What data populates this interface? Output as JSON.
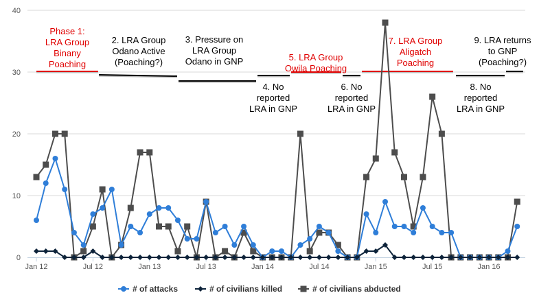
{
  "chart_data": {
    "type": "line",
    "title": "",
    "xlabel": "",
    "ylabel": "",
    "ylim": [
      0,
      40
    ],
    "yticks": [
      "0",
      "10",
      "20",
      "30",
      "40"
    ],
    "xticks": [
      "Jan 12",
      "Jul 12",
      "Jan 13",
      "Jul 13",
      "Jan 14",
      "Jul 14",
      "Jan 15",
      "Jul 15",
      "Jan 16"
    ],
    "x": [
      "2012-01",
      "2012-02",
      "2012-03",
      "2012-04",
      "2012-05",
      "2012-06",
      "2012-07",
      "2012-08",
      "2012-09",
      "2012-10",
      "2012-11",
      "2012-12",
      "2013-01",
      "2013-02",
      "2013-03",
      "2013-04",
      "2013-05",
      "2013-06",
      "2013-07",
      "2013-08",
      "2013-09",
      "2013-10",
      "2013-11",
      "2013-12",
      "2014-01",
      "2014-02",
      "2014-03",
      "2014-04",
      "2014-05",
      "2014-06",
      "2014-07",
      "2014-08",
      "2014-09",
      "2014-10",
      "2014-11",
      "2014-12",
      "2015-01",
      "2015-02",
      "2015-03",
      "2015-04",
      "2015-05",
      "2015-06",
      "2015-07",
      "2015-08",
      "2015-09",
      "2015-10",
      "2015-11",
      "2015-12",
      "2016-01",
      "2016-02",
      "2016-03",
      "2016-04"
    ],
    "grid": true,
    "legend": "bottom",
    "series": [
      {
        "name": "# of attacks",
        "color": "#2f7ed8",
        "marker": "circle",
        "values": [
          6,
          12,
          16,
          11,
          4,
          2,
          7,
          8,
          11,
          2,
          5,
          4,
          7,
          8,
          8,
          6,
          3,
          3,
          9,
          4,
          5,
          2,
          5,
          2,
          0,
          1,
          1,
          0,
          2,
          3,
          5,
          4,
          1,
          0,
          0,
          7,
          4,
          9,
          5,
          5,
          4,
          8,
          5,
          4,
          4,
          0,
          0,
          0,
          0,
          0,
          1,
          5
        ]
      },
      {
        "name": "# of civilians killed",
        "color": "#0d233a",
        "marker": "diamond",
        "values": [
          1,
          1,
          1,
          0,
          0,
          0,
          1,
          0,
          0,
          0,
          0,
          0,
          0,
          0,
          0,
          0,
          0,
          0,
          0,
          0,
          0,
          0,
          0,
          0,
          0,
          0,
          0,
          0,
          0,
          0,
          0,
          0,
          0,
          0,
          0,
          1,
          1,
          2,
          0,
          0,
          0,
          0,
          0,
          0,
          0,
          0,
          0,
          0,
          0,
          0,
          0,
          0
        ]
      },
      {
        "name": "# of civilians abducted",
        "color": "#4d4d4d",
        "marker": "square",
        "values": [
          13,
          15,
          20,
          20,
          0,
          1,
          5,
          11,
          0,
          2,
          8,
          17,
          17,
          5,
          5,
          1,
          5,
          0,
          9,
          0,
          1,
          0,
          4,
          1,
          0,
          0,
          0,
          0,
          20,
          1,
          4,
          4,
          2,
          0,
          0,
          13,
          16,
          38,
          17,
          13,
          5,
          13,
          26,
          20,
          0,
          0,
          0,
          0,
          0,
          0,
          0,
          9
        ]
      }
    ],
    "annotations": [
      {
        "lines": [
          "Phase 1:",
          "LRA Group",
          "Binany",
          "Poaching"
        ],
        "color": "#e00000"
      },
      {
        "lines": [
          "2. LRA Group",
          "Odano Active",
          "(Poaching?)"
        ],
        "color": "#000000"
      },
      {
        "lines": [
          "3. Pressure on",
          "LRA Group",
          "Odano in GNP"
        ],
        "color": "#000000"
      },
      {
        "lines": [
          "4. No",
          "reported",
          "LRA in GNP"
        ],
        "color": "#000000"
      },
      {
        "lines": [
          "5. LRA Group",
          "Owila Poaching"
        ],
        "color": "#e00000"
      },
      {
        "lines": [
          "6. No",
          "reported",
          "LRA in GNP"
        ],
        "color": "#000000"
      },
      {
        "lines": [
          "7. LRA Group",
          "Aligatch",
          "Poaching"
        ],
        "color": "#e00000"
      },
      {
        "lines": [
          "8. No",
          "reported",
          "LRA in GNP"
        ],
        "color": "#000000"
      },
      {
        "lines": [
          "9. LRA returns",
          "to GNP",
          "(Poaching?)"
        ],
        "color": "#000000"
      }
    ]
  }
}
